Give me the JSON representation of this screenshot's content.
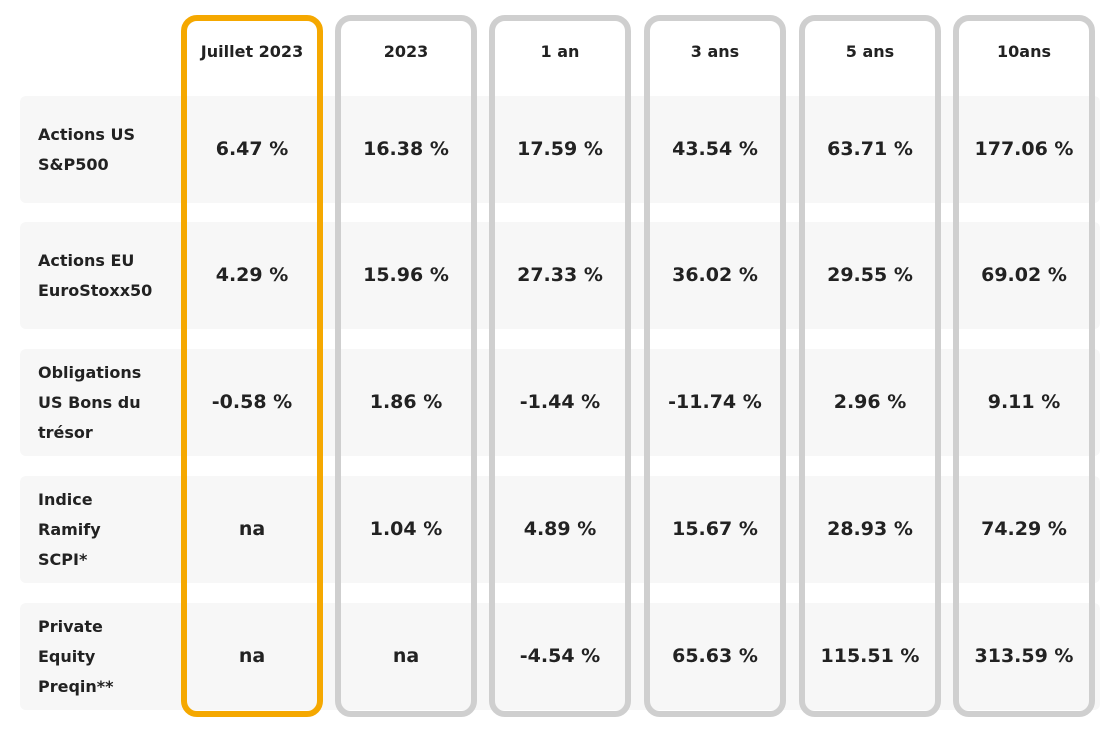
{
  "table": {
    "columns": [
      "Juillet 2023",
      "2023",
      "1 an",
      "3 ans",
      "5 ans",
      "10ans"
    ],
    "rows": [
      {
        "label": "Actions US\nS&P500",
        "values": [
          "6.47 %",
          "16.38 %",
          "17.59 %",
          "43.54 %",
          "63.71 %",
          "177.06 %"
        ]
      },
      {
        "label": "Actions EU\nEuroStoxx50",
        "values": [
          "4.29 %",
          "15.96 %",
          "27.33 %",
          "36.02 %",
          "29.55 %",
          "69.02 %"
        ]
      },
      {
        "label": "Obligations\nUS Bons du\ntrésor",
        "values": [
          "-0.58 %",
          "1.86 %",
          "-1.44 %",
          "-11.74 %",
          "2.96 %",
          "9.11 %"
        ]
      },
      {
        "label": "Indice\nRamify\nSCPI*",
        "values": [
          "na",
          "1.04 %",
          "4.89 %",
          "15.67 %",
          "28.93 %",
          "74.29 %"
        ]
      },
      {
        "label": "Private\nEquity\nPreqin**",
        "values": [
          "na",
          "na",
          "-4.54 %",
          "65.63 %",
          "115.51 %",
          "313.59 %"
        ]
      }
    ]
  }
}
